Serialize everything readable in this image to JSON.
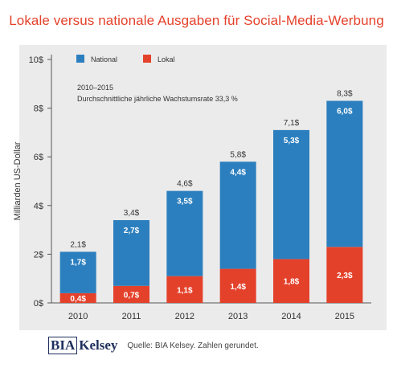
{
  "chart_data": {
    "type": "bar",
    "stacked": true,
    "title": "Lokale versus nationale Ausgaben für Social-Media-Werbung",
    "ylabel": "Milliarden US-Dollar",
    "xlabel": "",
    "ylim": [
      0,
      10
    ],
    "yticks": [
      0,
      2,
      4,
      6,
      8,
      10
    ],
    "ytick_labels": [
      "0$",
      "2$",
      "4$",
      "6$",
      "8$",
      "10$"
    ],
    "categories": [
      "2010",
      "2011",
      "2012",
      "2013",
      "2014",
      "2015"
    ],
    "series": [
      {
        "name": "Lokal",
        "color": "#e4412b",
        "values": [
          0.4,
          0.7,
          1.1,
          1.4,
          1.8,
          2.3
        ],
        "labels": [
          "0,4$",
          "0,7$",
          "1,1$",
          "1,4$",
          "1,8$",
          "2,3$"
        ]
      },
      {
        "name": "National",
        "color": "#2c7fbe",
        "values": [
          1.7,
          2.7,
          3.5,
          4.4,
          5.3,
          6.0
        ],
        "labels": [
          "1,7$",
          "2,7$",
          "3,5$",
          "4,4$",
          "5,3$",
          "6,0$"
        ]
      }
    ],
    "totals": [
      2.1,
      3.4,
      4.6,
      5.8,
      7.1,
      8.3
    ],
    "total_labels": [
      "2,1$",
      "3,4$",
      "4,6$",
      "5,8$",
      "7,1$",
      "8,3$"
    ],
    "legend": {
      "placement": "top-left",
      "order": [
        "National",
        "Lokal"
      ]
    },
    "annotation": [
      "2010–2015",
      "Durchschnittliche jährliche Wachstumsrate 33,3 %"
    ],
    "grid": false
  },
  "footer": {
    "logo_bia": "BIA",
    "logo_kelsey": "Kelsey",
    "source": "Quelle: BIA Kelsey. Zahlen gerundet."
  }
}
